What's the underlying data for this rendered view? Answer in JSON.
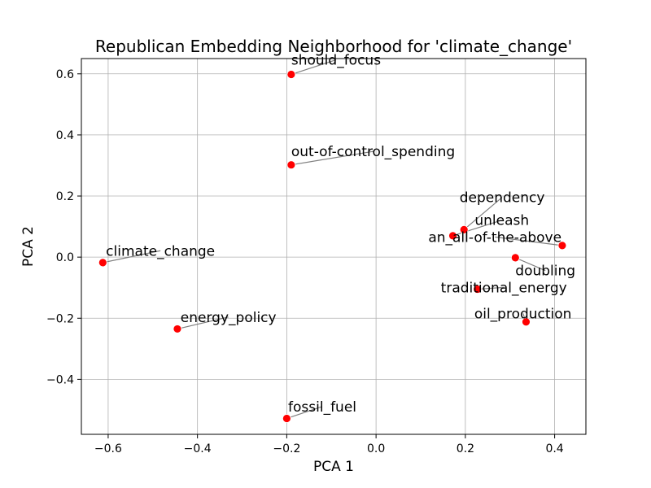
{
  "chart_data": {
    "type": "scatter",
    "title": "Republican Embedding Neighborhood for 'climate_change'",
    "xlabel": "PCA 1",
    "ylabel": "PCA 2",
    "xlim": [
      -0.66,
      0.47
    ],
    "ylim": [
      -0.58,
      0.65
    ],
    "xticks": [
      -0.6,
      -0.4,
      -0.2,
      0.0,
      0.2,
      0.4
    ],
    "xtick_labels": [
      "−0.6",
      "−0.4",
      "−0.2",
      "0.0",
      "0.2",
      "0.4"
    ],
    "yticks": [
      -0.4,
      -0.2,
      0.0,
      0.2,
      0.4,
      0.6
    ],
    "ytick_labels": [
      "−0.4",
      "−0.2",
      "0.0",
      "0.2",
      "0.4",
      "0.6"
    ],
    "grid": true,
    "marker_color": "#ff0000",
    "connector_color": "#808080",
    "points": [
      {
        "label": "should_focus",
        "x": -0.19,
        "y": 0.598,
        "lx": -0.19,
        "ly": 0.63
      },
      {
        "label": "out-of-control_spending",
        "x": -0.19,
        "y": 0.302,
        "lx": -0.19,
        "ly": 0.33
      },
      {
        "label": "dependency",
        "x": 0.197,
        "y": 0.09,
        "lx": 0.187,
        "ly": 0.18
      },
      {
        "label": "unleash",
        "x": 0.172,
        "y": 0.07,
        "lx": 0.221,
        "ly": 0.105
      },
      {
        "label": "an_all-of-the-above",
        "x": 0.417,
        "y": 0.038,
        "lx": 0.117,
        "ly": 0.05
      },
      {
        "label": "doubling",
        "x": 0.312,
        "y": -0.002,
        "lx": 0.312,
        "ly": -0.06
      },
      {
        "label": "climate_change",
        "x": -0.612,
        "y": -0.018,
        "lx": -0.605,
        "ly": 0.005
      },
      {
        "label": "traditional_energy",
        "x": 0.227,
        "y": -0.105,
        "lx": 0.145,
        "ly": -0.115
      },
      {
        "label": "energy_policy",
        "x": -0.445,
        "y": -0.235,
        "lx": -0.438,
        "ly": -0.212
      },
      {
        "label": "oil_production",
        "x": 0.336,
        "y": -0.212,
        "lx": 0.22,
        "ly": -0.2
      },
      {
        "label": "fossil_fuel",
        "x": -0.2,
        "y": -0.528,
        "lx": -0.197,
        "ly": -0.505
      }
    ]
  }
}
